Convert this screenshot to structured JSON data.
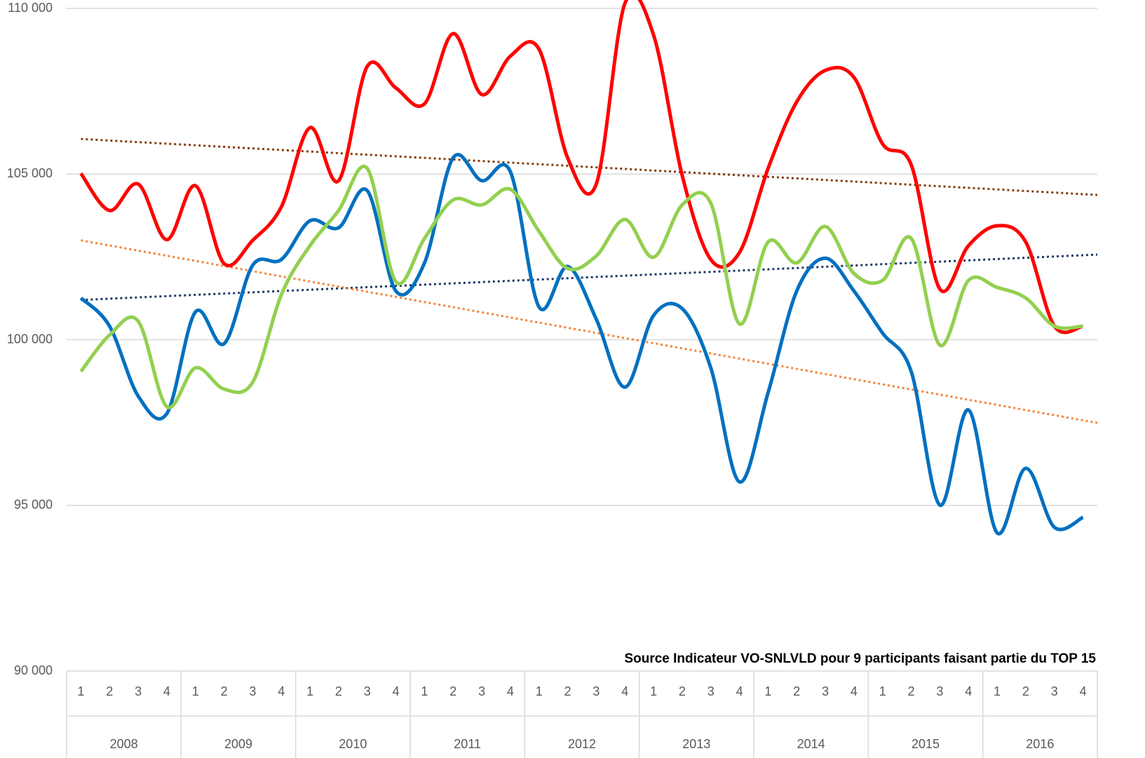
{
  "chart_data": {
    "type": "line",
    "annotation": "Source Indicateur VO-SNLVLD pour 9 participants faisant partie du TOP 15",
    "categories": [
      "1",
      "2",
      "3",
      "4",
      "1",
      "2",
      "3",
      "4",
      "1",
      "2",
      "3",
      "4",
      "1",
      "2",
      "3",
      "4",
      "1",
      "2",
      "3",
      "4",
      "1",
      "2",
      "3",
      "4",
      "1",
      "2",
      "3",
      "4",
      "1",
      "2",
      "3",
      "4",
      "1",
      "2",
      "3",
      "4"
    ],
    "years": [
      "2008",
      "2009",
      "2010",
      "2011",
      "2012",
      "2013",
      "2014",
      "2015",
      "2016"
    ],
    "ylim": [
      90000,
      110000
    ],
    "yticks": [
      {
        "value": 90000,
        "label": "90 000"
      },
      {
        "value": 95000,
        "label": "95 000"
      },
      {
        "value": 100000,
        "label": "100 000"
      },
      {
        "value": 105000,
        "label": "105 000"
      },
      {
        "value": 110000,
        "label": "110 000"
      }
    ],
    "grid": true,
    "series": [
      {
        "color": "#ff0000",
        "values": [
          105020,
          103900,
          104700,
          103020,
          104650,
          102300,
          103000,
          104010,
          106400,
          104800,
          108250,
          107600,
          107120,
          109240,
          107400,
          108560,
          108770,
          105490,
          104700,
          110150,
          109200,
          104960,
          102420,
          102630,
          105170,
          107180,
          108130,
          107920,
          105910,
          105280,
          101530,
          102840,
          103440,
          102950,
          100410,
          100410
        ]
      },
      {
        "color": "#0070c0",
        "values": [
          101260,
          100410,
          98300,
          97770,
          100840,
          99880,
          102250,
          102420,
          103590,
          103380,
          104500,
          101470,
          102320,
          105490,
          104800,
          105070,
          100990,
          102210,
          100620,
          98570,
          100730,
          100940,
          99150,
          95710,
          98400,
          101470,
          102460,
          101470,
          100200,
          99040,
          95010,
          97880,
          94170,
          96120,
          94340,
          94640
        ]
      },
      {
        "color": "#92d050",
        "values": [
          99040,
          100140,
          100560,
          97980,
          99150,
          98510,
          98720,
          101360,
          102840,
          103900,
          105170,
          101750,
          103060,
          104220,
          104070,
          104540,
          103270,
          102150,
          102530,
          103630,
          102490,
          104070,
          104120,
          100480,
          102950,
          102320,
          103420,
          102000,
          101790,
          103060,
          99840,
          101790,
          101580,
          101260,
          100410,
          100410
        ]
      }
    ],
    "trendlines": [
      {
        "color": "#843c0c",
        "values": [
          106060,
          104370
        ]
      },
      {
        "color": "#1f3864",
        "values": [
          101200,
          102570
        ]
      },
      {
        "color": "#f4823a",
        "values": [
          103000,
          97490
        ]
      }
    ]
  }
}
